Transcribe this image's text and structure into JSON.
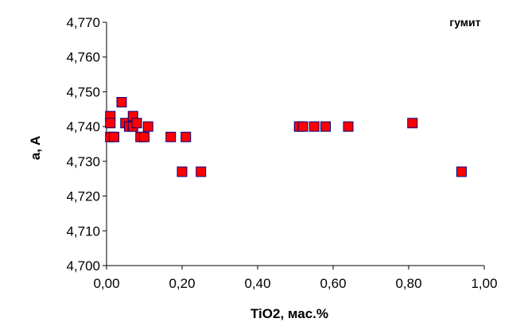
{
  "chart_data": {
    "type": "scatter",
    "title": "",
    "xlabel": "TiO2, мас.%",
    "ylabel": "a, A",
    "xlim": [
      0,
      1
    ],
    "ylim": [
      4.7,
      4.77
    ],
    "xticks": [
      "0,00",
      "0,20",
      "0,40",
      "0,60",
      "0,80",
      "1,00"
    ],
    "yticks": [
      "4,700",
      "4,710",
      "4,720",
      "4,730",
      "4,740",
      "4,750",
      "4,760",
      "4,770"
    ],
    "grid": false,
    "legend_position": "top-right",
    "series": [
      {
        "name": "гумит",
        "marker": "square",
        "color": "#ff0000",
        "edge_color": "#000080",
        "points": [
          {
            "x": 0.01,
            "y": 4.743
          },
          {
            "x": 0.01,
            "y": 4.741
          },
          {
            "x": 0.01,
            "y": 4.737
          },
          {
            "x": 0.02,
            "y": 4.737
          },
          {
            "x": 0.04,
            "y": 4.747
          },
          {
            "x": 0.05,
            "y": 4.741
          },
          {
            "x": 0.06,
            "y": 4.74
          },
          {
            "x": 0.07,
            "y": 4.743
          },
          {
            "x": 0.07,
            "y": 4.74
          },
          {
            "x": 0.08,
            "y": 4.741
          },
          {
            "x": 0.09,
            "y": 4.737
          },
          {
            "x": 0.1,
            "y": 4.737
          },
          {
            "x": 0.11,
            "y": 4.74
          },
          {
            "x": 0.17,
            "y": 4.737
          },
          {
            "x": 0.2,
            "y": 4.727
          },
          {
            "x": 0.21,
            "y": 4.737
          },
          {
            "x": 0.25,
            "y": 4.727
          },
          {
            "x": 0.51,
            "y": 4.74
          },
          {
            "x": 0.52,
            "y": 4.74
          },
          {
            "x": 0.55,
            "y": 4.74
          },
          {
            "x": 0.58,
            "y": 4.74
          },
          {
            "x": 0.64,
            "y": 4.74
          },
          {
            "x": 0.81,
            "y": 4.741
          },
          {
            "x": 0.94,
            "y": 4.727
          }
        ]
      }
    ]
  }
}
